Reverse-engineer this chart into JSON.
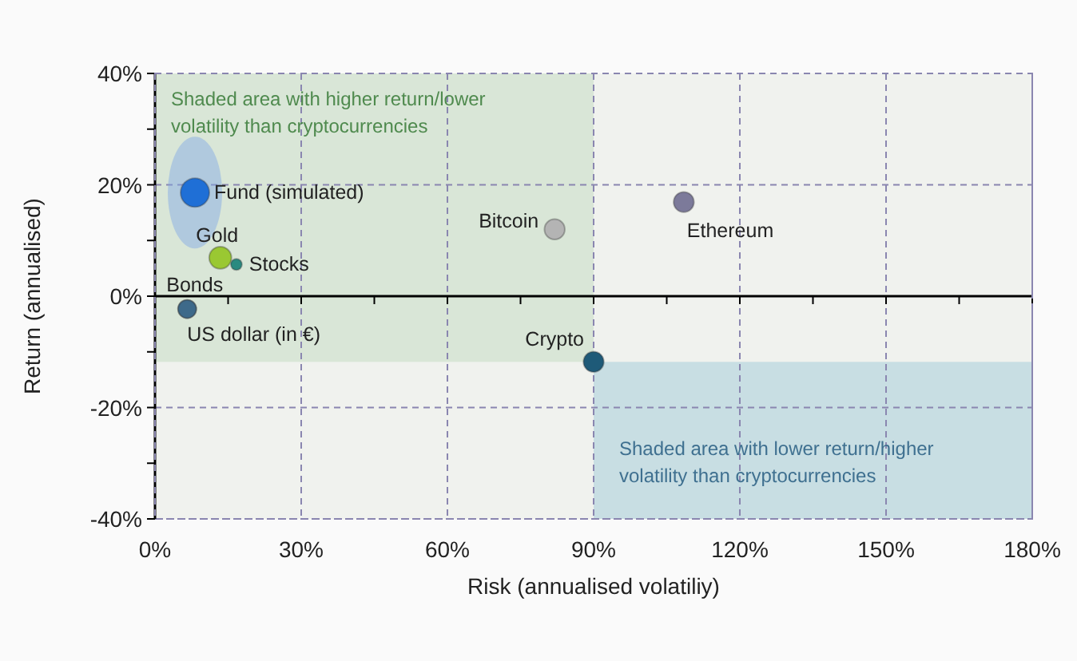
{
  "chart_data": {
    "type": "bubble",
    "xlabel": "Risk (annualised volatiliy)",
    "ylabel": "Return (annualised)",
    "xlim": [
      0,
      180
    ],
    "ylim": [
      -40,
      40
    ],
    "xticks": [
      {
        "value": 0,
        "label": "0%"
      },
      {
        "value": 15,
        "label": null
      },
      {
        "value": 30,
        "label": "30%"
      },
      {
        "value": 45,
        "label": null
      },
      {
        "value": 60,
        "label": "60%"
      },
      {
        "value": 75,
        "label": null
      },
      {
        "value": 90,
        "label": "90%"
      },
      {
        "value": 105,
        "label": null
      },
      {
        "value": 120,
        "label": "120%"
      },
      {
        "value": 135,
        "label": null
      },
      {
        "value": 150,
        "label": "150%"
      },
      {
        "value": 165,
        "label": null
      },
      {
        "value": 180,
        "label": "180%"
      }
    ],
    "yticks": [
      {
        "value": -40,
        "label": "-40%"
      },
      {
        "value": -30,
        "label": null
      },
      {
        "value": -20,
        "label": "-20%"
      },
      {
        "value": -10,
        "label": null
      },
      {
        "value": 0,
        "label": "0%"
      },
      {
        "value": 10,
        "label": null
      },
      {
        "value": 20,
        "label": "20%"
      },
      {
        "value": 30,
        "label": null
      },
      {
        "value": 40,
        "label": "40%"
      }
    ],
    "grid": true,
    "bands": [
      {
        "axis": "x",
        "from": 0,
        "to": 90,
        "label": "Shaded area with higher return/lower volatility than cryptocurrencies",
        "color": "#d9e6d7"
      },
      {
        "axis": "x",
        "from": 90,
        "to": 180,
        "label": "Shaded area with lower return/higher volatility than cryptocurrencies",
        "color": "#c8dee3"
      }
    ],
    "series": [
      {
        "name": "Fund (simulated)",
        "color": "#1f6fd6",
        "x": [
          8.2
        ],
        "values": [
          18.6
        ],
        "sizes": [
          1
        ]
      },
      {
        "name": "Gold",
        "color": "#9ac832",
        "x": [
          13.4
        ],
        "values": [
          6.9
        ],
        "sizes": [
          0.6
        ]
      },
      {
        "name": "Stocks",
        "color": "#2a8a80",
        "x": [
          16.7
        ],
        "values": [
          5.7
        ],
        "sizes": [
          0.15
        ]
      },
      {
        "name": "Bonds",
        "color": "#3e6a8a",
        "x": [
          6.6
        ],
        "values": [
          -2.3
        ],
        "sizes": [
          0.4
        ]
      },
      {
        "name": "US dollar (in €)",
        "color": "#3e6a8a",
        "x": [
          6.6
        ],
        "values": [
          -2.3
        ],
        "sizes": [
          0.4
        ]
      },
      {
        "name": "Bitcoin",
        "color": "#b4b4b4",
        "x": [
          82
        ],
        "values": [
          12
        ],
        "sizes": [
          0.5
        ]
      },
      {
        "name": "Ethereum",
        "color": "#7c7a9a",
        "x": [
          108.5
        ],
        "values": [
          16.9
        ],
        "sizes": [
          0.5
        ]
      },
      {
        "name": "Crypto",
        "color": "#1e5a78",
        "x": [
          90
        ],
        "values": [
          -11.8
        ],
        "sizes": [
          0.5
        ]
      }
    ]
  }
}
